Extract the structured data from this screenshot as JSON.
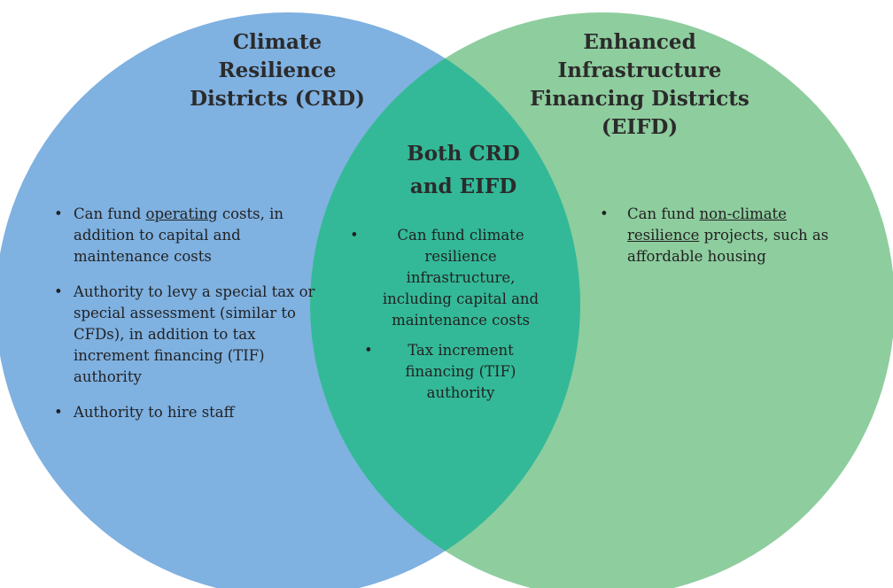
{
  "sets": [
    {
      "title_lines": [
        "Climate",
        "Resilience",
        "Districts (CRD)"
      ],
      "bullets": [
        {
          "runs": [
            {
              "text": "Can fund ",
              "underline": false
            },
            {
              "text": "operating",
              "underline": true
            },
            {
              "text": " costs, in addition to capital and maintenance costs",
              "underline": false
            }
          ]
        },
        {
          "runs": [
            {
              "text": "Authority to levy a special tax or special assessment (similar to CFDs), in addition to tax increment financing (TIF) authority",
              "underline": false
            }
          ]
        },
        {
          "runs": [
            {
              "text": "Authority to hire staff",
              "underline": false
            }
          ]
        }
      ]
    },
    {
      "title_lines": [
        "Enhanced",
        "Infrastructure",
        "Financing Districts",
        "(EIFD)"
      ],
      "bullets": [
        {
          "runs": [
            {
              "text": "Can fund ",
              "underline": false
            },
            {
              "text": "non-climate resilience",
              "underline": true
            },
            {
              "text": " projects, such as affordable housing",
              "underline": false
            }
          ]
        }
      ]
    }
  ],
  "overlap": {
    "title_lines": [
      "Both CRD",
      "and EIFD"
    ],
    "bullets": [
      {
        "runs": [
          {
            "text": "Can fund climate resilience infrastructure, including capital and maintenance costs",
            "underline": false
          }
        ]
      },
      {
        "runs": [
          {
            "text": "Tax increment financing (TIF) authority",
            "underline": false
          }
        ]
      }
    ]
  }
}
